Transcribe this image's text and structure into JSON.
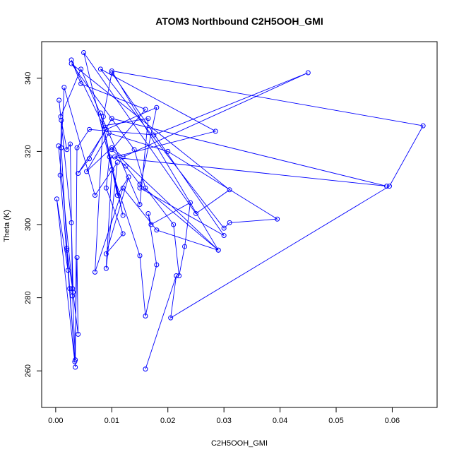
{
  "chart_data": {
    "type": "line",
    "title": "ATOM3 Northbound C2H5OOH_GMI",
    "xlabel": "C2H5OOH_GMI",
    "ylabel": "Theta (K)",
    "xlim": [
      -0.0025,
      0.068
    ],
    "ylim": [
      250,
      350
    ],
    "xticks": [
      0.0,
      0.01,
      0.02,
      0.03,
      0.04,
      0.05,
      0.06
    ],
    "xtick_labels": [
      "0.00",
      "0.01",
      "0.02",
      "0.03",
      "0.04",
      "0.05",
      "0.06"
    ],
    "yticks": [
      260,
      280,
      300,
      320,
      340
    ],
    "ytick_labels": [
      "260",
      "280",
      "300",
      "320",
      "340"
    ],
    "grid": false,
    "marker": "open-circle",
    "color": "#0000ff",
    "series": [
      {
        "x": [
          0.0005,
          0.003,
          0.004,
          0.0038,
          0.0034,
          0.0002,
          0.0022,
          0.0035,
          0.002,
          0.0031,
          0.0028,
          0.0006,
          0.0009,
          0.0045,
          0.015,
          0.0165,
          0.0085,
          0.0028,
          0.0045,
          0.016,
          0.01,
          0.029,
          0.018,
          0.012,
          0.007,
          0.0085,
          0.01,
          0.03,
          0.015,
          0.018,
          0.009,
          0.004,
          0.006,
          0.01,
          0.059,
          0.0096,
          0.009,
          0.012,
          0.009,
          0.013,
          0.011,
          0.008,
          0.012,
          0.005,
          0.025,
          0.031,
          0.0028,
          0.014,
          0.016,
          0.021,
          0.022,
          0.023,
          0.024,
          0.017,
          0.0165,
          0.018,
          0.016,
          0.015,
          0.01,
          0.009,
          0.011,
          0.007,
          0.0015,
          0.001,
          0.002,
          0.0025,
          0.0008,
          0.001,
          0.002,
          0.0026,
          0.003,
          0.0035,
          0.0038,
          0.006,
          0.0175,
          0.045,
          0.012,
          0.01,
          0.0055,
          0.0095,
          0.02,
          0.0395,
          0.031,
          0.03,
          0.008,
          0.0285,
          0.0105,
          0.0125,
          0.015,
          0.029,
          0.01,
          0.0655,
          0.0595,
          0.0205,
          0.0215,
          0.016
        ],
        "y": [
          321.5,
          282.5,
          270.0,
          291.0,
          262.5,
          307.0,
          287.5,
          261.0,
          293.0,
          281.5,
          300.5,
          334.0,
          329.5,
          342.5,
          305.5,
          329.0,
          327.0,
          345.0,
          338.5,
          331.5,
          320.5,
          293.0,
          298.5,
          310.0,
          287.0,
          329.5,
          341.5,
          297.0,
          310.0,
          332.0,
          326.0,
          314.0,
          318.0,
          329.0,
          310.5,
          318.5,
          310.0,
          297.5,
          292.0,
          313.0,
          308.0,
          330.5,
          302.5,
          347.0,
          303.0,
          309.5,
          344.0,
          320.5,
          310.0,
          300.0,
          286.0,
          294.0,
          306.0,
          300.0,
          303.0,
          289.0,
          275.0,
          291.5,
          315.0,
          288.0,
          317.0,
          308.0,
          337.5,
          321.0,
          293.5,
          282.5,
          313.5,
          328.5,
          320.5,
          322.0,
          280.5,
          263.0,
          321.0,
          326.0,
          324.5,
          341.5,
          318.5,
          321.0,
          314.5,
          325.0,
          320.0,
          301.5,
          300.5,
          299.0,
          342.5,
          325.5,
          318.5,
          316.0,
          311.0,
          293.0,
          342.0,
          327.0,
          310.5,
          274.5,
          286.0,
          260.5
        ]
      }
    ]
  }
}
